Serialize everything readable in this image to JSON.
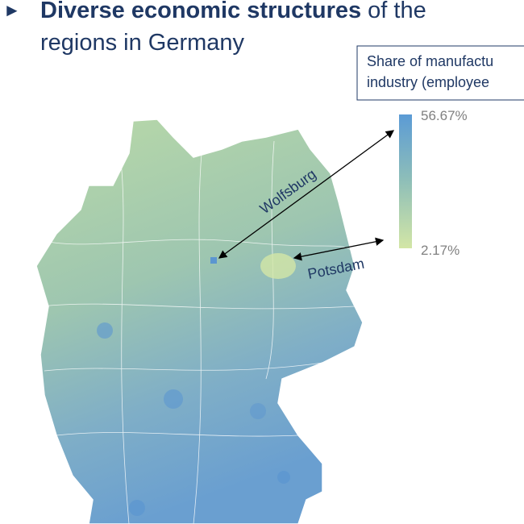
{
  "slide": {
    "bullet": "►",
    "title_bold": "Diverse economic structures",
    "title_rest": " of the",
    "title_line2": "regions in Germany"
  },
  "legend": {
    "title_line1": "Share of manufactu",
    "title_line2": "industry (employee",
    "max_label": "56.67%",
    "min_label": "2.17%"
  },
  "annotations": {
    "wolfsburg": "Wolfsburg",
    "potsdam": "Potsdam"
  }
}
